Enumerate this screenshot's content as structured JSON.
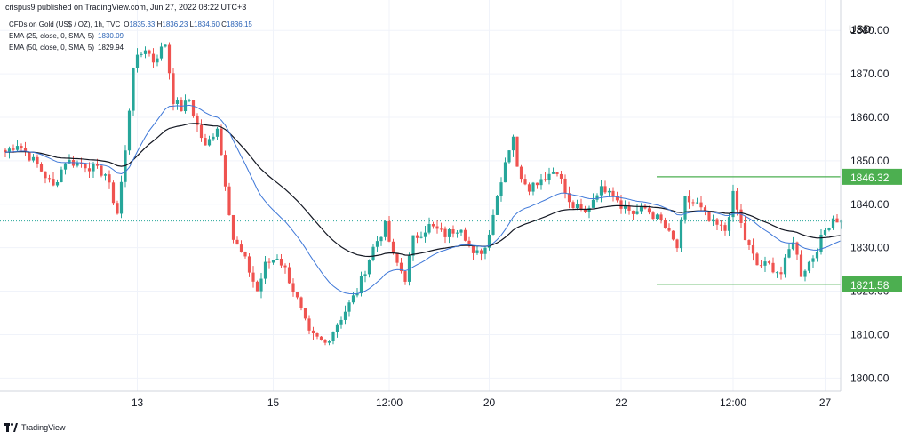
{
  "header": {
    "published": "crispus9 published on TradingView.com, Jun 27, 2022 08:22 UTC+3"
  },
  "legend": {
    "symbol": "CFDs on Gold (US$ / OZ), 1h, TVC",
    "ohlc": {
      "o_label": "O",
      "o": "1835.33",
      "h_label": "H",
      "h": "1836.23",
      "l_label": "L",
      "l": "1834.60",
      "c_label": "C",
      "c": "1836.15"
    },
    "ema25": {
      "label": "EMA (25, close, 0, SMA, 5)",
      "value": "1830.09"
    },
    "ema50": {
      "label": "EMA (50, close, 0, SMA, 5)",
      "value": "1829.94"
    }
  },
  "footer": {
    "brand": "TradingView"
  },
  "colors": {
    "up": "#26a69a",
    "down": "#ef5350",
    "ema25": "#3f78d8",
    "ema50": "#131722",
    "level": "#4caf50",
    "grid": "#f0f3fa",
    "axis": "#d1d4dc"
  },
  "chart_data": {
    "type": "candlestick",
    "currency": "USD",
    "y_ticks": [
      "1800.00",
      "1810.00",
      "1820.00",
      "1830.00",
      "1840.00",
      "1850.00",
      "1860.00",
      "1870.00",
      "1880.00"
    ],
    "ylim": [
      1797,
      1887
    ],
    "x_ticks": [
      "13",
      "15",
      "12:00",
      "20",
      "22",
      "12:00",
      "27"
    ],
    "last_price": 1836.15,
    "levels": [
      {
        "label": "1846.32",
        "value": 1846.32,
        "from_candle": 166
      },
      {
        "label": "1821.58",
        "value": 1821.58,
        "from_candle": 166
      }
    ],
    "ema25_value": 1830.09,
    "ema50_value": 1829.94,
    "path": [
      [
        0,
        1852
      ],
      [
        3,
        1854
      ],
      [
        8,
        1849
      ],
      [
        12,
        1844
      ],
      [
        15,
        1850
      ],
      [
        20,
        1849
      ],
      [
        25,
        1847
      ],
      [
        28,
        1838
      ],
      [
        30,
        1852
      ],
      [
        32,
        1872
      ],
      [
        35,
        1876
      ],
      [
        37,
        1873
      ],
      [
        40,
        1877
      ],
      [
        42,
        1864
      ],
      [
        44,
        1862
      ],
      [
        46,
        1864
      ],
      [
        48,
        1858
      ],
      [
        50,
        1853
      ],
      [
        53,
        1858
      ],
      [
        57,
        1832
      ],
      [
        60,
        1827
      ],
      [
        63,
        1820
      ],
      [
        65,
        1826
      ],
      [
        68,
        1828
      ],
      [
        70,
        1825
      ],
      [
        73,
        1818
      ],
      [
        76,
        1810
      ],
      [
        80,
        1808
      ],
      [
        84,
        1814
      ],
      [
        88,
        1820
      ],
      [
        92,
        1830
      ],
      [
        95,
        1835
      ],
      [
        97,
        1828
      ],
      [
        100,
        1823
      ],
      [
        102,
        1832
      ],
      [
        106,
        1835
      ],
      [
        110,
        1833
      ],
      [
        114,
        1835
      ],
      [
        117,
        1828
      ],
      [
        120,
        1830
      ],
      [
        123,
        1842
      ],
      [
        125,
        1850
      ],
      [
        127,
        1856
      ],
      [
        128,
        1848
      ],
      [
        131,
        1844
      ],
      [
        134,
        1846
      ],
      [
        138,
        1848
      ],
      [
        141,
        1840
      ],
      [
        145,
        1838
      ],
      [
        148,
        1843
      ],
      [
        151,
        1844
      ],
      [
        154,
        1840
      ],
      [
        157,
        1838
      ],
      [
        160,
        1839
      ],
      [
        164,
        1836
      ],
      [
        168,
        1830
      ],
      [
        170,
        1841
      ],
      [
        173,
        1840
      ],
      [
        176,
        1836
      ],
      [
        180,
        1834
      ],
      [
        182,
        1842
      ],
      [
        185,
        1832
      ],
      [
        188,
        1826
      ],
      [
        191,
        1826
      ],
      [
        194,
        1824
      ],
      [
        197,
        1832
      ],
      [
        199,
        1824
      ],
      [
        202,
        1828
      ],
      [
        205,
        1834
      ],
      [
        207,
        1837
      ],
      [
        209,
        1836
      ]
    ],
    "tick_candles": [
      33,
      67,
      96,
      121,
      154,
      182,
      205
    ]
  }
}
